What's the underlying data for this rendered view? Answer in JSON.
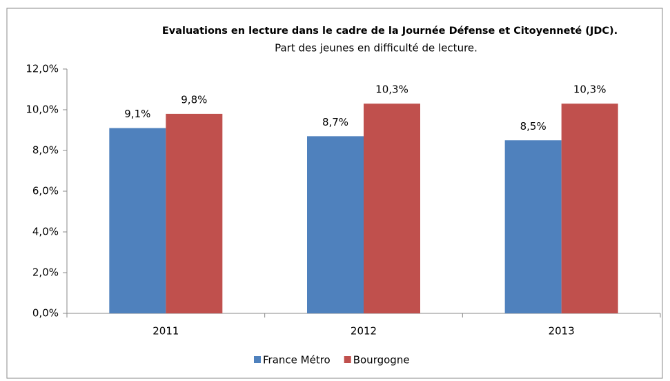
{
  "chart_data": {
    "type": "bar",
    "title": "Evaluations en lecture dans le cadre de la Journée Défense et Citoyenneté (JDC).",
    "subtitle": "Part des jeunes en difficulté de lecture.",
    "categories": [
      "2011",
      "2012",
      "2013"
    ],
    "series": [
      {
        "name": "France Métro",
        "color": "#4f81bd",
        "values": [
          9.1,
          8.7,
          8.5
        ],
        "value_labels": [
          "9,1%",
          "8,7%",
          "8,5%"
        ]
      },
      {
        "name": "Bourgogne",
        "color": "#c0504d",
        "values": [
          9.8,
          10.3,
          10.3
        ],
        "value_labels": [
          "9,8%",
          "10,3%",
          "10,3%"
        ]
      }
    ],
    "ylim": [
      0,
      12
    ],
    "yticks": [
      {
        "value": 0,
        "label": "0,0%"
      },
      {
        "value": 2,
        "label": "2,0%"
      },
      {
        "value": 4,
        "label": "4,0%"
      },
      {
        "value": 6,
        "label": "6,0%"
      },
      {
        "value": 8,
        "label": "8,0%"
      },
      {
        "value": 10,
        "label": "10,0%"
      },
      {
        "value": 12,
        "label": "12,0%"
      }
    ],
    "grid": false,
    "legend": "bottom"
  }
}
